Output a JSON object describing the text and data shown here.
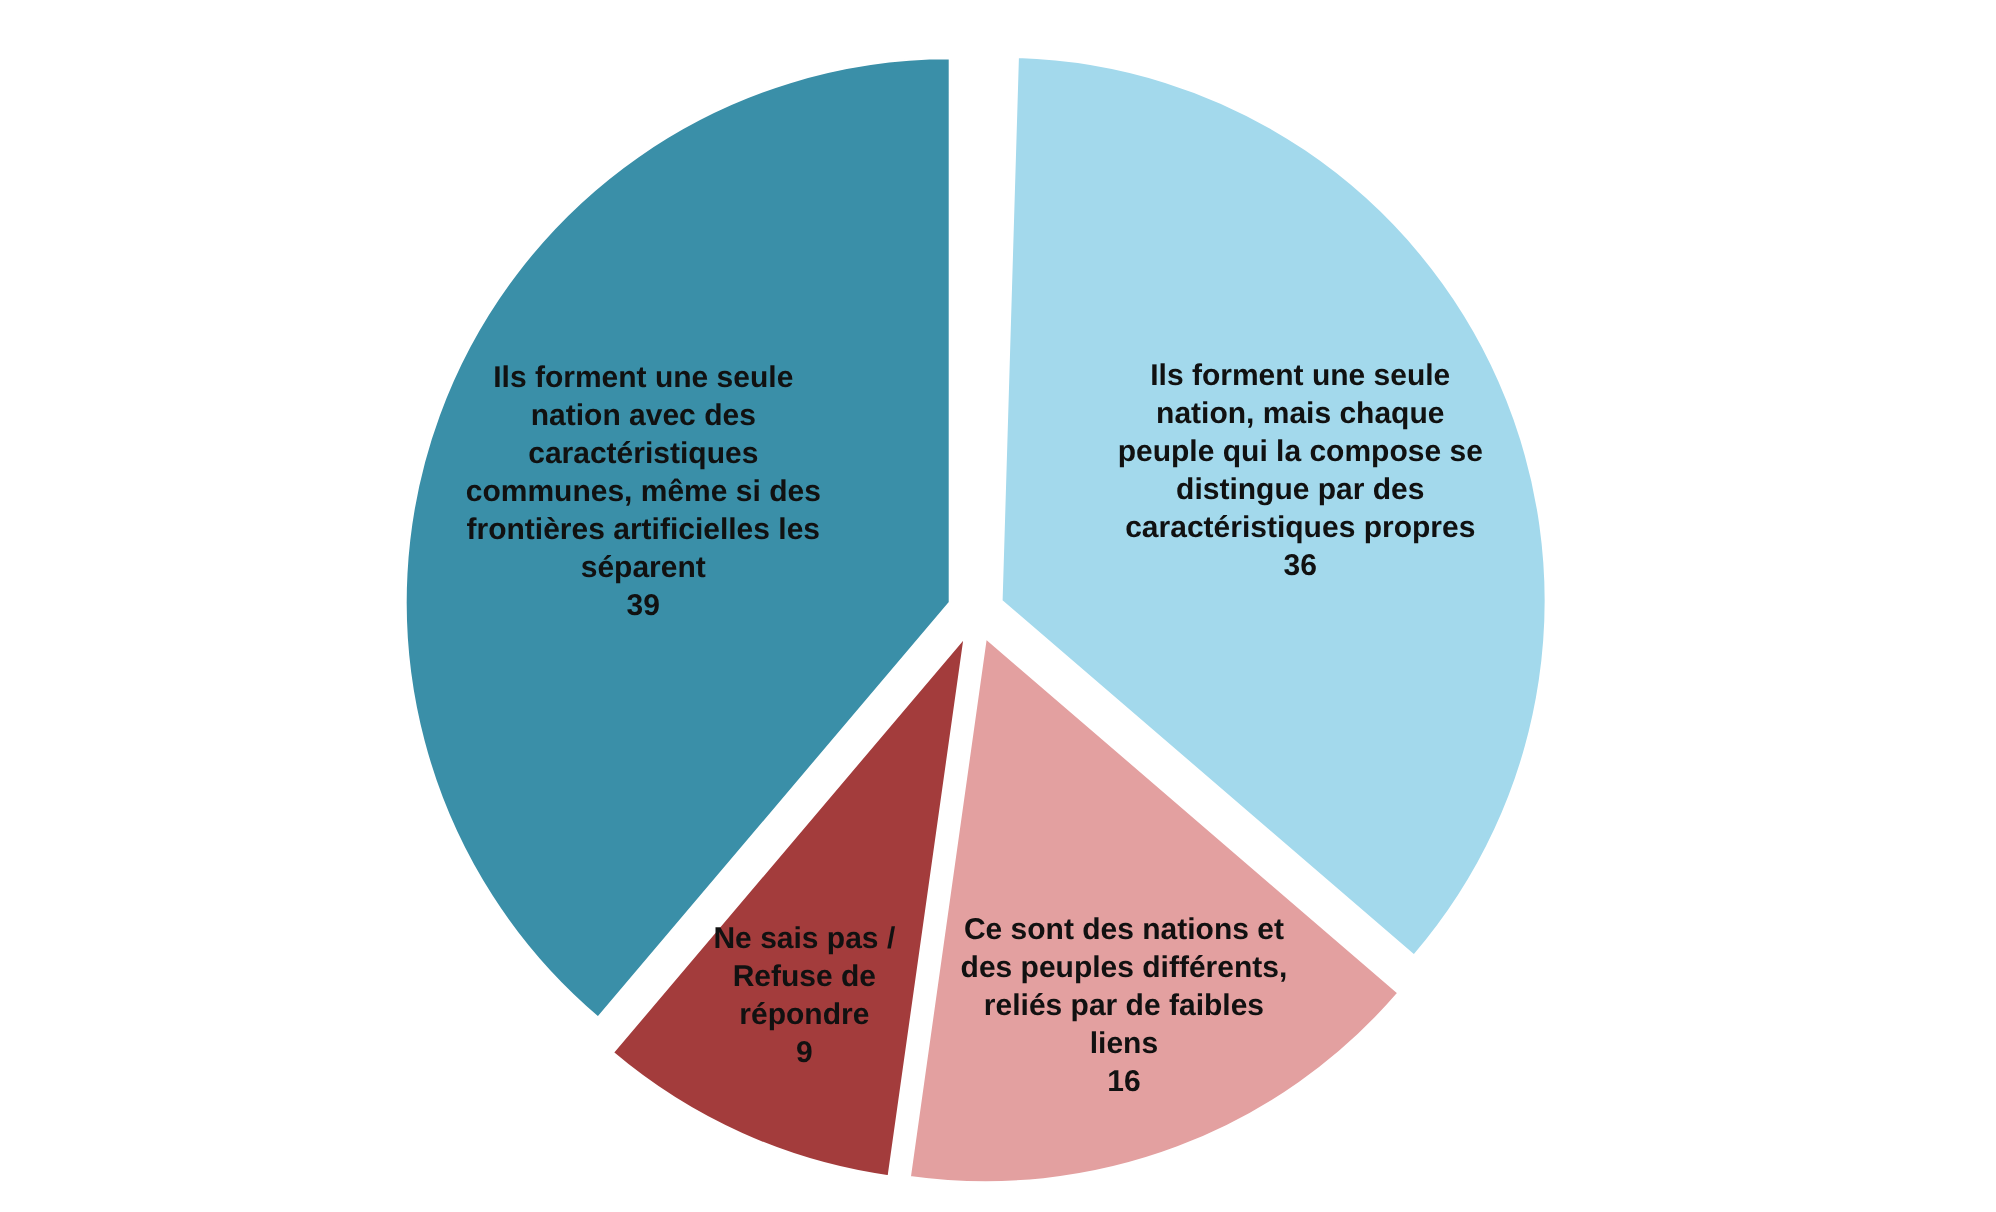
{
  "chart_data": {
    "type": "pie",
    "categories": [
      "Ils forment une seule nation, mais chaque peuple qui la compose se distingue par des caractéristiques propres",
      "Ce sont des nations et des peuples différents, reliés par de faibles liens",
      "Ne sais pas / Refuse de répondre",
      "Ils forment une seule nation avec des caractéristiques communes, même si des frontières artificielles les séparent"
    ],
    "values": [
      36,
      16,
      9,
      39
    ],
    "colors": [
      "#a3d9ec",
      "#e3a0a0",
      "#a33c3c",
      "#3a8fa8"
    ],
    "data_labels": true
  }
}
